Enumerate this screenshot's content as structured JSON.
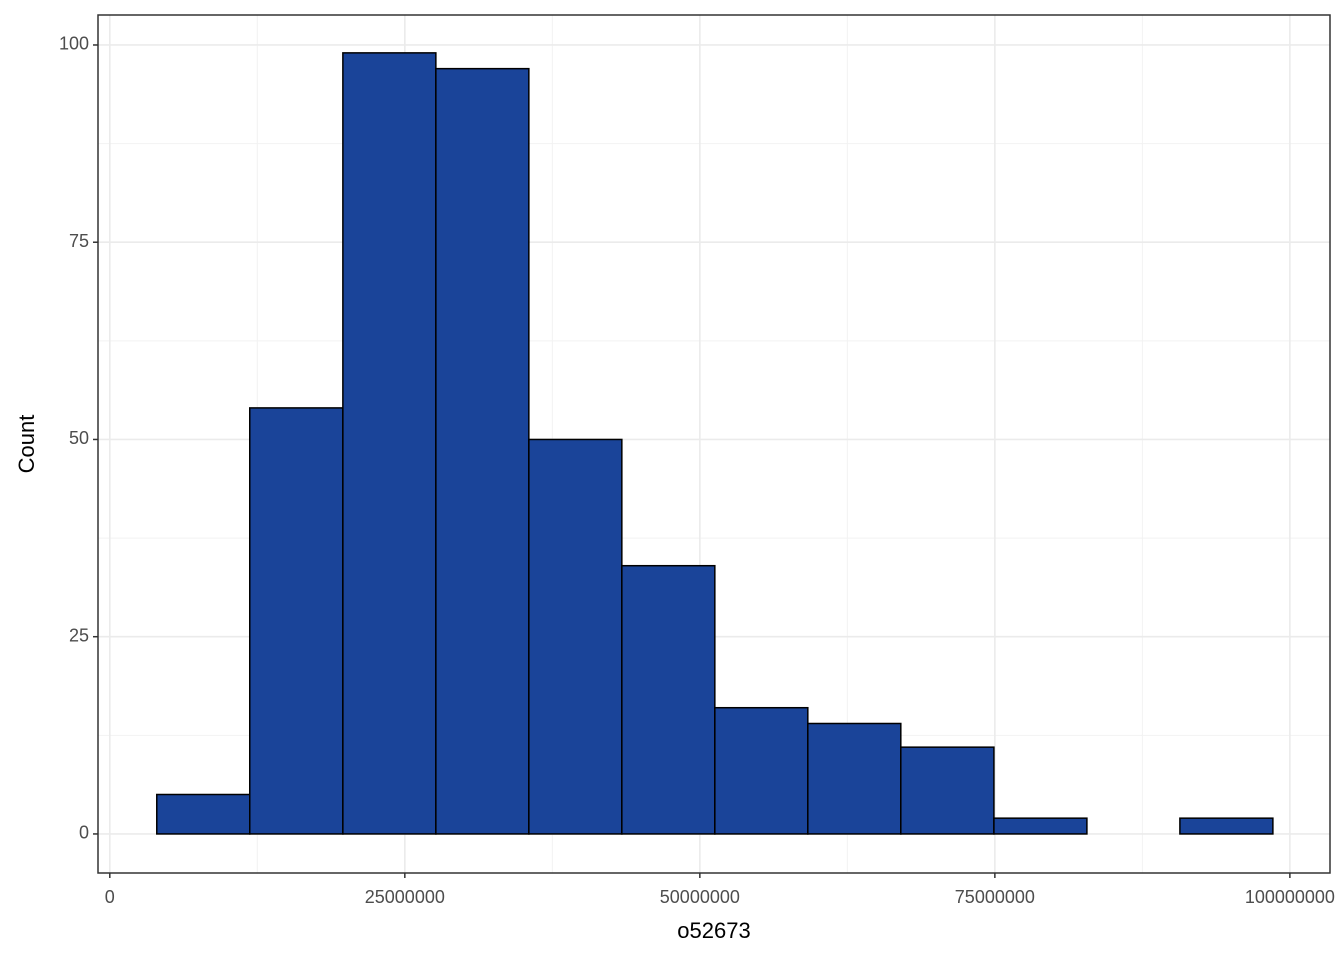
{
  "chart_data": {
    "type": "histogram",
    "x_label": "o52673",
    "y_label": "Count",
    "bins": [
      3980000,
      11860000,
      19750000,
      27630000,
      35510000,
      43390000,
      51270000,
      59150000,
      67030000,
      74920000,
      82800000,
      90680000,
      98560000
    ],
    "values": [
      5,
      54,
      99,
      97,
      50,
      34,
      16,
      14,
      11,
      2,
      0,
      2
    ],
    "color": "#1a4499",
    "xlim": [
      -1000000,
      103400000
    ],
    "xticks": [
      0,
      25000000,
      50000000,
      75000000,
      100000000
    ],
    "ylim": [
      -4.95,
      103.8
    ],
    "yticks": [
      0,
      25,
      50,
      75,
      100
    ],
    "grid": true
  }
}
